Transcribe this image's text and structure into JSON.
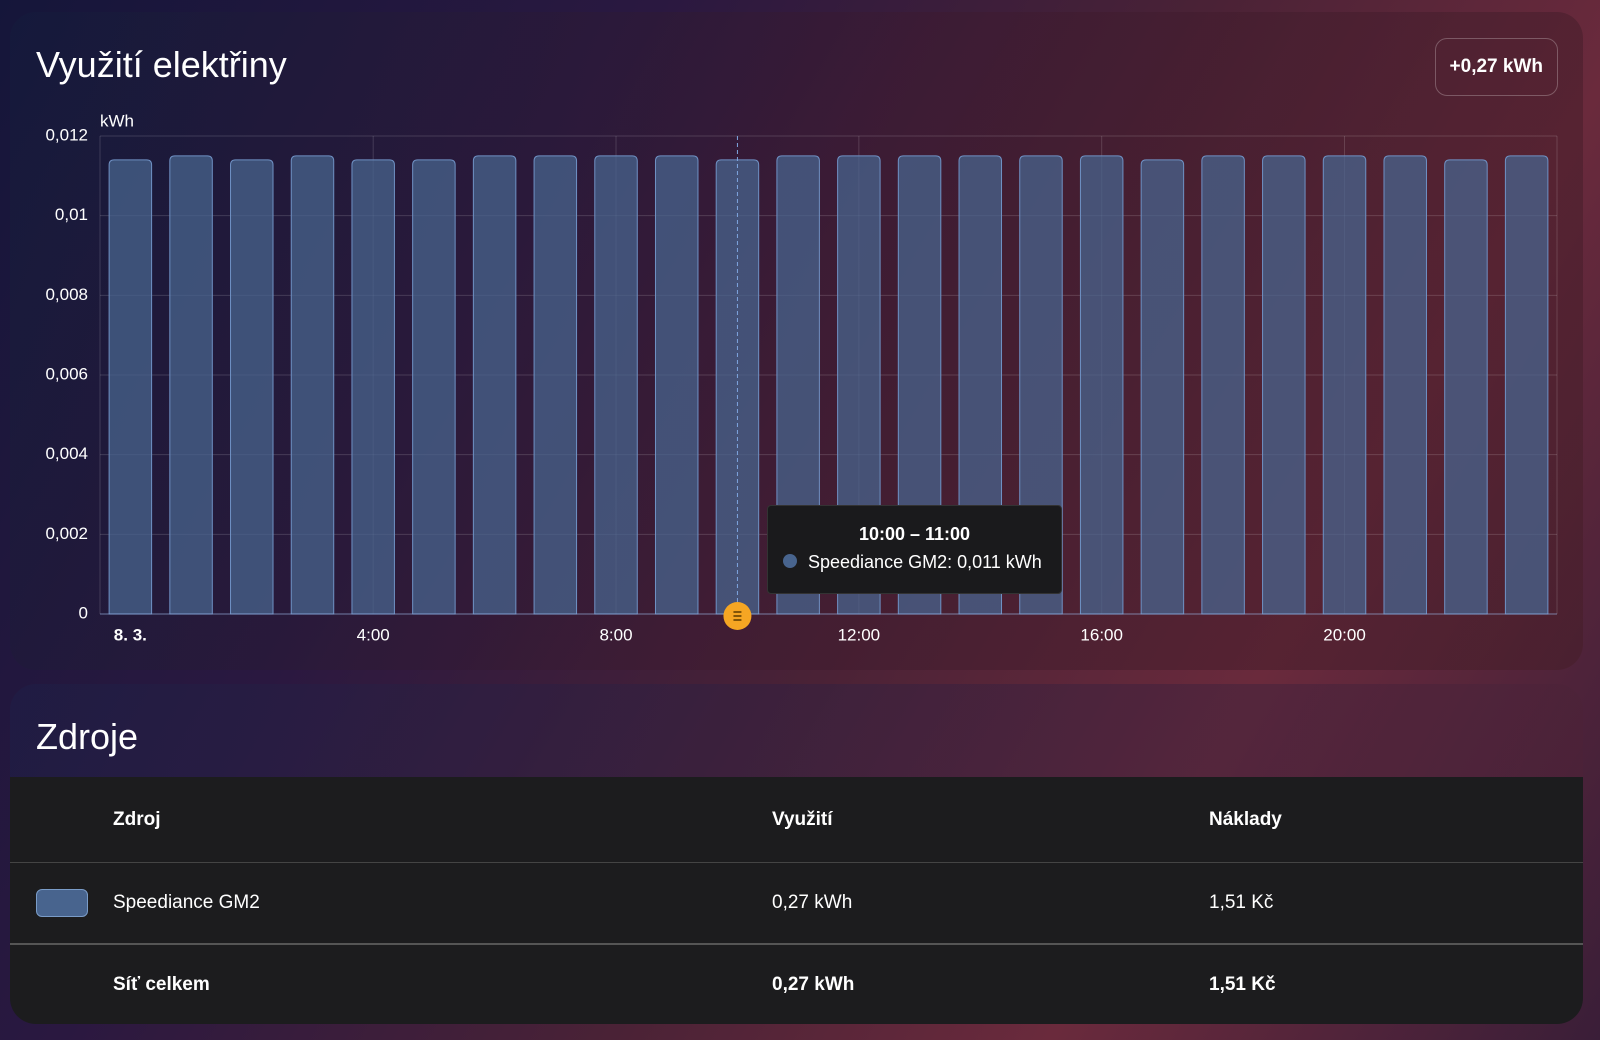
{
  "chart_data": {
    "type": "bar",
    "title": "Využití elektřiny",
    "total_badge": "+0,27 kWh",
    "y_label": "kWh",
    "categories": [
      "8. 3.",
      null,
      null,
      null,
      "4:00",
      null,
      null,
      null,
      "8:00",
      null,
      null,
      null,
      "12:00",
      null,
      null,
      null,
      "16:00",
      null,
      null,
      null,
      "20:00",
      null,
      null,
      null
    ],
    "series": [
      {
        "name": "Speediance GM2",
        "color": "#48648e",
        "values": [
          0.0114,
          0.0115,
          0.0114,
          0.0115,
          0.0114,
          0.0114,
          0.0115,
          0.0115,
          0.0115,
          0.0115,
          0.0114,
          0.0115,
          0.0115,
          0.0115,
          0.0115,
          0.0115,
          0.0115,
          0.0114,
          0.0115,
          0.0115,
          0.0115,
          0.0115,
          0.0114,
          0.0115
        ]
      }
    ],
    "ylim": [
      0,
      0.012
    ],
    "yticks": [
      0,
      {
        "value": 0.002,
        "label": "0,002"
      },
      {
        "value": 0.004,
        "label": "0,004"
      },
      {
        "value": 0.006,
        "label": "0,006"
      },
      {
        "value": 0.008,
        "label": "0,008"
      },
      {
        "value": 0.01,
        "label": "0,01"
      },
      {
        "value": 0.012,
        "label": "0,012"
      }
    ],
    "grid": true,
    "tooltip": {
      "title": "10:00 – 11:00",
      "text": "Speediance GM2: 0,011 kWh"
    }
  },
  "sources": {
    "title": "Zdroje",
    "columns": [
      "Zdroj",
      "Využití",
      "Náklady"
    ],
    "rows": [
      [
        "Speediance GM2",
        "0,27 kWh",
        "1,51 Kč"
      ]
    ],
    "total": [
      "Síť celkem",
      "0,27 kWh",
      "1,51 Kč"
    ]
  }
}
